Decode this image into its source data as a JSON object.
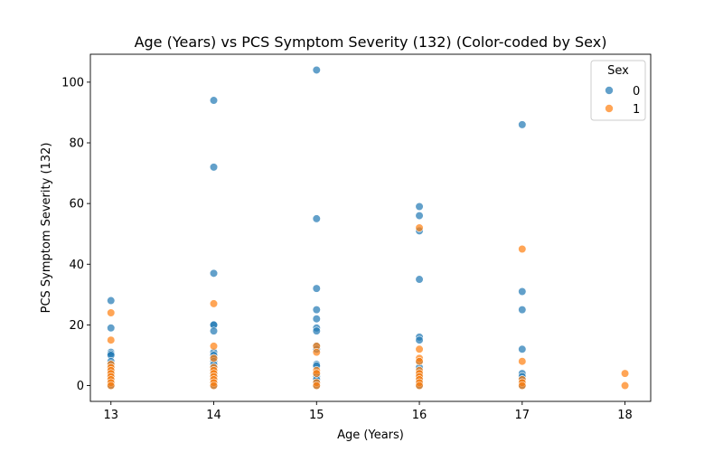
{
  "chart_data": {
    "type": "scatter",
    "title": "Age (Years) vs PCS Symptom Severity (132) (Color-coded by Sex)",
    "xlabel": "Age (Years)",
    "ylabel": "PCS Symptom Severity (132)",
    "xlim": [
      12.8,
      18.25
    ],
    "ylim": [
      -5.2,
      109.2
    ],
    "xticks": [
      13,
      14,
      15,
      16,
      17,
      18
    ],
    "yticks": [
      0,
      20,
      40,
      60,
      80,
      100
    ],
    "grid": false,
    "legend": {
      "title": "Sex",
      "position": "top-right"
    },
    "series": [
      {
        "name": "0",
        "color": "#1f77b4",
        "points": [
          [
            13,
            28
          ],
          [
            13,
            19
          ],
          [
            13,
            11
          ],
          [
            13,
            10.5
          ],
          [
            13,
            10
          ],
          [
            13,
            8
          ],
          [
            13,
            7
          ],
          [
            13,
            6
          ],
          [
            13,
            5
          ],
          [
            13,
            4
          ],
          [
            13,
            3
          ],
          [
            13,
            2
          ],
          [
            13,
            1
          ],
          [
            13,
            0
          ],
          [
            14,
            94
          ],
          [
            14,
            72
          ],
          [
            14,
            37
          ],
          [
            14,
            20
          ],
          [
            14,
            20
          ],
          [
            14,
            18
          ],
          [
            14,
            11
          ],
          [
            14,
            10
          ],
          [
            14,
            9
          ],
          [
            14,
            8
          ],
          [
            14,
            7
          ],
          [
            14,
            6
          ],
          [
            14,
            5
          ],
          [
            14,
            4
          ],
          [
            14,
            3
          ],
          [
            14,
            2
          ],
          [
            14,
            1
          ],
          [
            14,
            0
          ],
          [
            15,
            104
          ],
          [
            15,
            55
          ],
          [
            15,
            32
          ],
          [
            15,
            25
          ],
          [
            15,
            22
          ],
          [
            15,
            19
          ],
          [
            15,
            18
          ],
          [
            15,
            13
          ],
          [
            15,
            12
          ],
          [
            15,
            7
          ],
          [
            15,
            6.5
          ],
          [
            15,
            4
          ],
          [
            15,
            3
          ],
          [
            15,
            2
          ],
          [
            15,
            1
          ],
          [
            15,
            0
          ],
          [
            16,
            59
          ],
          [
            16,
            56
          ],
          [
            16,
            51
          ],
          [
            16,
            35
          ],
          [
            16,
            16
          ],
          [
            16,
            15
          ],
          [
            16,
            8
          ],
          [
            16,
            6
          ],
          [
            16,
            4
          ],
          [
            16,
            3
          ],
          [
            16,
            2
          ],
          [
            16,
            1
          ],
          [
            16,
            0
          ],
          [
            17,
            86
          ],
          [
            17,
            31
          ],
          [
            17,
            25
          ],
          [
            17,
            12
          ],
          [
            17,
            4
          ],
          [
            17,
            3
          ],
          [
            17,
            2
          ],
          [
            17,
            1
          ],
          [
            17,
            0
          ]
        ]
      },
      {
        "name": "1",
        "color": "#ff7f0e",
        "points": [
          [
            13,
            24
          ],
          [
            13,
            15
          ],
          [
            13,
            7
          ],
          [
            13,
            6
          ],
          [
            13,
            5
          ],
          [
            13,
            4
          ],
          [
            13,
            3
          ],
          [
            13,
            2
          ],
          [
            13,
            1
          ],
          [
            13,
            0
          ],
          [
            14,
            27
          ],
          [
            14,
            13
          ],
          [
            14,
            9
          ],
          [
            14,
            6
          ],
          [
            14,
            5
          ],
          [
            14,
            4
          ],
          [
            14,
            3
          ],
          [
            14,
            2
          ],
          [
            14,
            1
          ],
          [
            14,
            0
          ],
          [
            15,
            13
          ],
          [
            15,
            11
          ],
          [
            15,
            5
          ],
          [
            15,
            4
          ],
          [
            15,
            1
          ],
          [
            15,
            0
          ],
          [
            16,
            52
          ],
          [
            16,
            12
          ],
          [
            16,
            9
          ],
          [
            16,
            8
          ],
          [
            16,
            5
          ],
          [
            16,
            4
          ],
          [
            16,
            3
          ],
          [
            16,
            2
          ],
          [
            16,
            1
          ],
          [
            16,
            0
          ],
          [
            17,
            45
          ],
          [
            17,
            8
          ],
          [
            17,
            2
          ],
          [
            17,
            1
          ],
          [
            17,
            0
          ],
          [
            18,
            4
          ],
          [
            18,
            0
          ]
        ]
      }
    ]
  }
}
